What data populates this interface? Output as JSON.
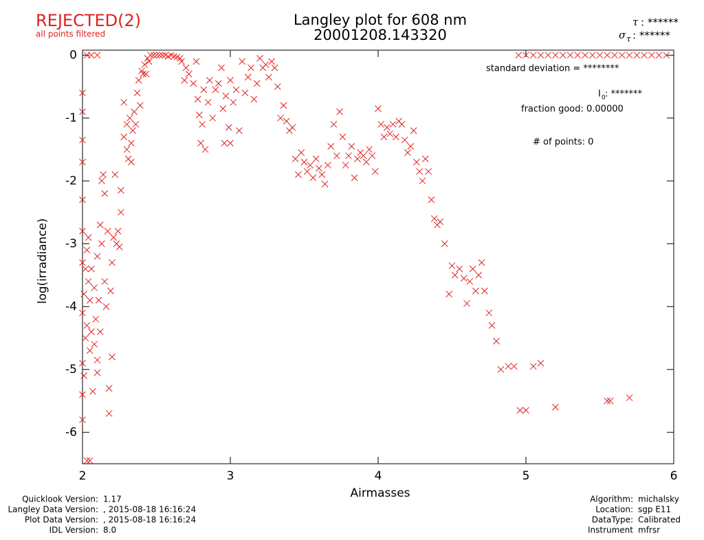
{
  "chart_data": {
    "type": "scatter",
    "status": "REJECTED(2)",
    "status_note": "all points filtered",
    "title": "Langley plot for 608 nm",
    "subtitle": "20001208.143320",
    "xlabel": "Airmasses",
    "ylabel": "log(irradiance)",
    "tau": {
      "symbol": "τ",
      "text": ": ******"
    },
    "sigma_tau": {
      "symbol": "σ",
      "sub": "τ",
      "text": ": ******"
    },
    "stats": {
      "std": "standard deviation  = ********",
      "i0": {
        "symbol": "I",
        "sub": "0",
        "text": ":  *******"
      },
      "fraction": "fraction good: 0.00000",
      "points": "# of points:     0"
    },
    "footer_left": [
      [
        "Quicklook Version:",
        "1.17"
      ],
      [
        "Langley Data Version:",
        ", 2015-08-18 16:16:24"
      ],
      [
        "Plot Data Version:",
        ", 2015-08-18 16:16:24"
      ],
      [
        "IDL Version:",
        "8.0"
      ]
    ],
    "footer_right": [
      [
        "Algorithm:",
        "michalsky"
      ],
      [
        "Location:",
        "sgp E11"
      ],
      [
        "DataType:",
        "Calibrated"
      ],
      [
        "Instrument",
        "mfrsr"
      ]
    ],
    "color": "#e02020",
    "xlim": [
      2,
      6
    ],
    "xticks": [
      2,
      3,
      4,
      5,
      6
    ],
    "ylim": [
      -6.5,
      0.08
    ],
    "yticks": [
      0,
      -1,
      -2,
      -3,
      -4,
      -5,
      -6
    ],
    "x": [
      2.0,
      2.0,
      2.0,
      2.0,
      2.0,
      2.0,
      2.0,
      2.02,
      2.01,
      2.0,
      2.02,
      2.0,
      2.01,
      2.0,
      2.0,
      2.03,
      2.05,
      2.03,
      2.04,
      2.05,
      2.03,
      2.06,
      2.05,
      2.04,
      2.06,
      2.07,
      2.08,
      2.08,
      2.09,
      2.1,
      2.1,
      2.1,
      2.11,
      2.12,
      2.12,
      2.13,
      2.13,
      2.14,
      2.15,
      2.15,
      2.16,
      2.17,
      2.18,
      2.18,
      2.19,
      2.2,
      2.2,
      2.21,
      2.22,
      2.23,
      2.24,
      2.25,
      2.26,
      2.26,
      2.03,
      2.06,
      2.1,
      2.28,
      2.28,
      2.3,
      2.3,
      2.31,
      2.32,
      2.33,
      2.33,
      2.34,
      2.35,
      2.36,
      2.37,
      2.38,
      2.39,
      2.4,
      2.41,
      2.42,
      2.43,
      2.44,
      2.45,
      2.46,
      2.48,
      2.5,
      2.52,
      2.54,
      2.56,
      2.58,
      2.6,
      2.62,
      2.64,
      2.66,
      2.67,
      2.69,
      2.7,
      2.72,
      2.75,
      2.77,
      2.78,
      2.79,
      2.8,
      2.81,
      2.82,
      2.83,
      2.85,
      2.86,
      2.88,
      2.9,
      2.92,
      2.94,
      2.95,
      2.97,
      2.99,
      3.0,
      3.02,
      3.04,
      3.06,
      3.08,
      3.1,
      3.12,
      3.14,
      3.16,
      3.18,
      3.2,
      3.22,
      3.24,
      3.26,
      3.28,
      3.3,
      3.32,
      2.96,
      3.0,
      3.34,
      3.36,
      3.38,
      3.4,
      3.42,
      3.44,
      3.46,
      3.48,
      3.5,
      3.52,
      3.54,
      3.56,
      3.58,
      3.6,
      3.62,
      3.64,
      3.66,
      3.68,
      3.7,
      3.72,
      3.74,
      3.76,
      3.78,
      3.8,
      3.82,
      3.84,
      3.86,
      3.88,
      3.9,
      3.92,
      3.94,
      3.96,
      3.98,
      4.0,
      4.02,
      4.04,
      4.06,
      4.08,
      4.1,
      4.12,
      4.14,
      4.16,
      4.18,
      4.2,
      4.22,
      4.24,
      4.26,
      4.28,
      4.3,
      4.32,
      4.34,
      4.36,
      4.38,
      4.4,
      4.42,
      4.45,
      4.48,
      4.5,
      4.52,
      4.55,
      4.58,
      4.6,
      4.62,
      4.64,
      4.66,
      4.68,
      4.7,
      4.72,
      4.75,
      4.77,
      4.8,
      4.83,
      4.88,
      4.92,
      4.96,
      5.0,
      5.05,
      5.1,
      5.2,
      5.55,
      5.57,
      5.7,
      4.95,
      5.0,
      5.05,
      5.1,
      5.15,
      5.2,
      5.25,
      5.3,
      5.35,
      5.4,
      5.45,
      5.5,
      5.55,
      5.6,
      5.65,
      5.7,
      5.75,
      5.8,
      5.85,
      5.9,
      5.95
    ],
    "values": [
      -0.6,
      -0.9,
      -1.35,
      -1.7,
      -2.3,
      -2.8,
      -3.3,
      -3.4,
      -3.8,
      -4.1,
      -4.5,
      -4.9,
      -5.1,
      -5.4,
      -5.8,
      -6.45,
      -6.45,
      -3.1,
      -3.6,
      -3.9,
      -4.3,
      -4.4,
      -4.7,
      -2.9,
      -3.4,
      -5.35,
      -4.6,
      -3.7,
      -4.2,
      -4.85,
      -5.05,
      -3.2,
      -3.9,
      -4.4,
      -2.7,
      -3.0,
      -2.0,
      -1.9,
      -2.2,
      -3.6,
      -4.0,
      -2.8,
      -5.3,
      -5.7,
      -3.75,
      -3.3,
      -4.8,
      -2.9,
      -1.9,
      -3.0,
      -2.8,
      -3.05,
      -2.5,
      -2.15,
      0,
      0,
      0,
      -1.3,
      -0.75,
      -1.1,
      -1.5,
      -1.65,
      -1.0,
      -1.4,
      -1.7,
      -1.2,
      -0.9,
      -1.1,
      -0.6,
      -0.4,
      -0.8,
      -0.25,
      -0.3,
      -0.15,
      -0.3,
      -0.05,
      -0.1,
      0,
      0,
      0,
      0,
      0,
      0,
      -0.02,
      0,
      -0.02,
      -0.03,
      -0.05,
      -0.1,
      -0.4,
      -0.2,
      -0.3,
      -0.45,
      -0.1,
      -0.7,
      -0.95,
      -1.4,
      -1.1,
      -0.55,
      -1.5,
      -0.75,
      -0.4,
      -1.0,
      -0.55,
      -0.45,
      -0.2,
      -0.85,
      -0.65,
      -1.15,
      -0.4,
      -0.75,
      -0.55,
      -1.2,
      -0.1,
      -0.6,
      -0.35,
      -0.2,
      -0.7,
      -0.45,
      -0.05,
      -0.2,
      -0.15,
      -0.35,
      -0.1,
      -0.2,
      -0.5,
      -1.4,
      -1.4,
      -1.0,
      -0.8,
      -1.05,
      -1.2,
      -1.15,
      -1.65,
      -1.9,
      -1.55,
      -1.7,
      -1.85,
      -1.75,
      -1.95,
      -1.65,
      -1.8,
      -1.9,
      -2.05,
      -1.75,
      -1.45,
      -1.1,
      -1.6,
      -0.9,
      -1.3,
      -1.75,
      -1.6,
      -1.45,
      -1.95,
      -1.65,
      -1.55,
      -1.6,
      -1.7,
      -1.5,
      -1.6,
      -1.85,
      -0.85,
      -1.1,
      -1.3,
      -1.15,
      -1.25,
      -1.1,
      -1.3,
      -1.05,
      -1.1,
      -1.35,
      -1.55,
      -1.45,
      -1.2,
      -1.7,
      -1.85,
      -2.0,
      -1.65,
      -1.85,
      -2.3,
      -2.6,
      -2.7,
      -2.65,
      -3.0,
      -3.8,
      -3.35,
      -3.5,
      -3.4,
      -3.55,
      -3.95,
      -3.6,
      -3.4,
      -3.75,
      -3.5,
      -3.3,
      -3.75,
      -4.1,
      -4.3,
      -4.55,
      -5.0,
      -4.95,
      -4.95,
      -5.65,
      -5.65,
      -4.95,
      -4.9,
      -5.6,
      -5.5,
      -5.5,
      -5.45,
      0,
      0,
      0,
      0,
      0,
      0,
      0,
      0,
      0,
      0,
      0,
      0,
      0,
      0,
      0,
      0,
      0,
      0,
      0,
      0,
      0
    ]
  }
}
